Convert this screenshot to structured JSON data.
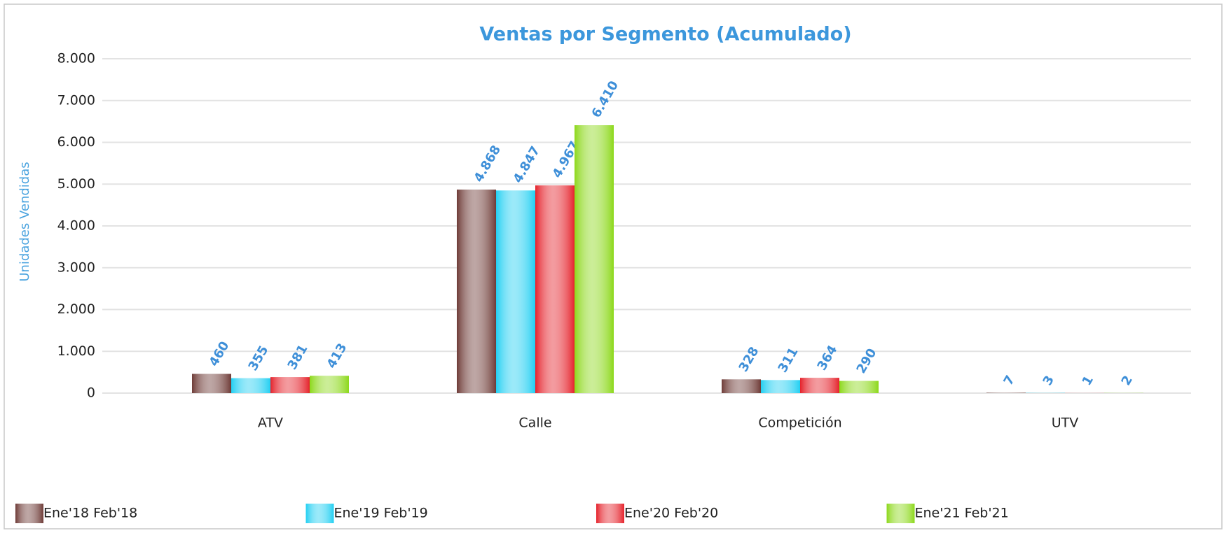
{
  "chart_data": {
    "type": "bar",
    "title": "Ventas por Segmento (Acumulado)",
    "y_label": "Unidades Vendidas",
    "categories": [
      "ATV",
      "Calle",
      "Competición",
      "UTV"
    ],
    "series": [
      {
        "name": "Ene'18 Feb'18",
        "color": "#6e3b37",
        "values": [
          460,
          4868,
          328,
          7
        ],
        "value_labels": [
          "460",
          "4.868",
          "328",
          "7"
        ]
      },
      {
        "name": "Ene'19 Feb'19",
        "color": "#22cff2",
        "values": [
          355,
          4847,
          311,
          3
        ],
        "value_labels": [
          "355",
          "4.847",
          "311",
          "3"
        ]
      },
      {
        "name": "Ene'20 Feb'20",
        "color": "#e5222b",
        "values": [
          381,
          4967,
          364,
          1
        ],
        "value_labels": [
          "381",
          "4.967",
          "364",
          "1"
        ]
      },
      {
        "name": "Ene'21 Feb'21",
        "color": "#8cd81a",
        "values": [
          413,
          6410,
          290,
          2
        ],
        "value_labels": [
          "413",
          "6.410",
          "290",
          "2"
        ]
      }
    ],
    "ylim": [
      0,
      8000
    ],
    "yticks": [
      0,
      {
        "value": 1000,
        "label": "1.000"
      },
      {
        "value": 2000,
        "label": "2.000"
      },
      {
        "value": 3000,
        "label": "3.000"
      },
      {
        "value": 4000,
        "label": "4.000"
      },
      {
        "value": 5000,
        "label": "5.000"
      },
      {
        "value": 6000,
        "label": "6.000"
      },
      {
        "value": 7000,
        "label": "7.000"
      },
      {
        "value": 8000,
        "label": "8.000"
      }
    ],
    "grid": true,
    "legend": "bottom"
  }
}
